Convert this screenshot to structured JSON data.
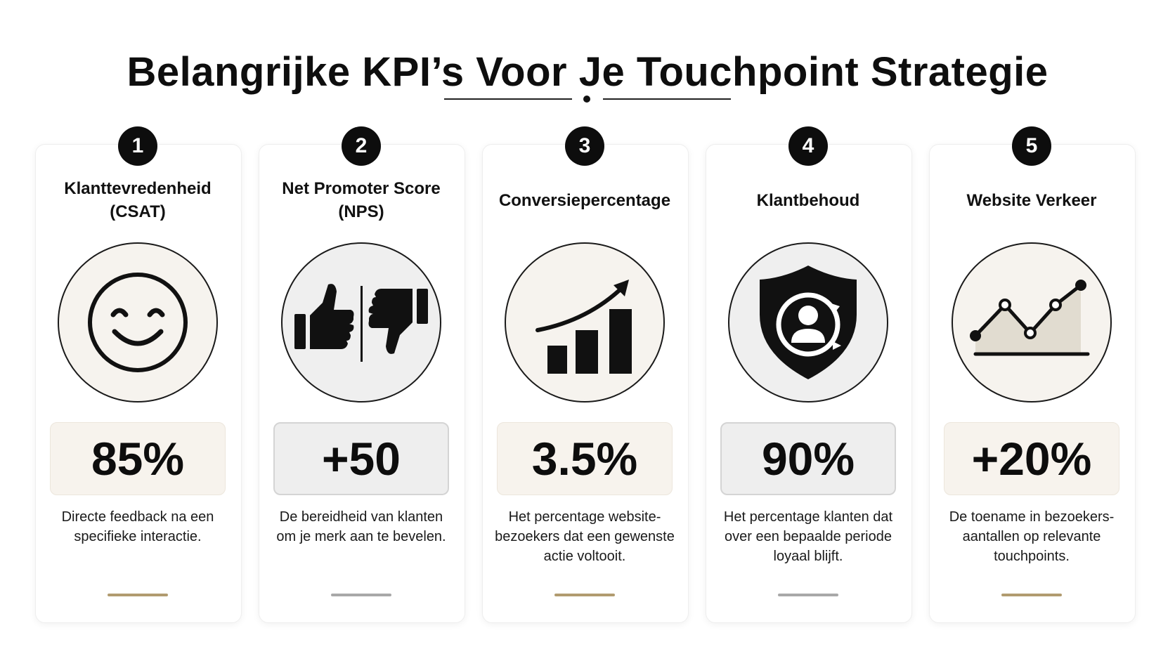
{
  "title": "Belangrijke KPI’s Voor Je Touchpoint Strategie",
  "colors": {
    "badge": "#0d0d0d",
    "accent_gold": "#b19b6f",
    "accent_gray": "#a8a8a8",
    "panel_warm": "#f7f3ed",
    "panel_gray": "#eeeeee"
  },
  "kpis": [
    {
      "number": "1",
      "title": "Klanttevredenheid (CSAT)",
      "icon": "smiley-face-icon",
      "value": "85%",
      "description": "Directe feedback na een specifieke interactie.",
      "theme": "warm"
    },
    {
      "number": "2",
      "title": "Net Promoter Score (NPS)",
      "icon": "thumbs-up-down-icon",
      "value": "+50",
      "description": "De bereidheid van klanten om je merk aan te bevelen.",
      "theme": "gray"
    },
    {
      "number": "3",
      "title": "Conversiepercentage",
      "icon": "growth-bar-chart-icon",
      "value": "3.5%",
      "description": "Het percentage website-bezoekers dat een gewenste actie voltooit.",
      "theme": "warm"
    },
    {
      "number": "4",
      "title": "Klantbehoud",
      "icon": "shield-user-icon",
      "value": "90%",
      "description": "Het percentage klanten dat over een bepaalde periode loyaal blijft.",
      "theme": "gray"
    },
    {
      "number": "5",
      "title": "Website Verkeer",
      "icon": "traffic-line-chart-icon",
      "value": "+20%",
      "description": "De toename in bezoekers-aantallen op relevante touchpoints.",
      "theme": "warm"
    }
  ]
}
